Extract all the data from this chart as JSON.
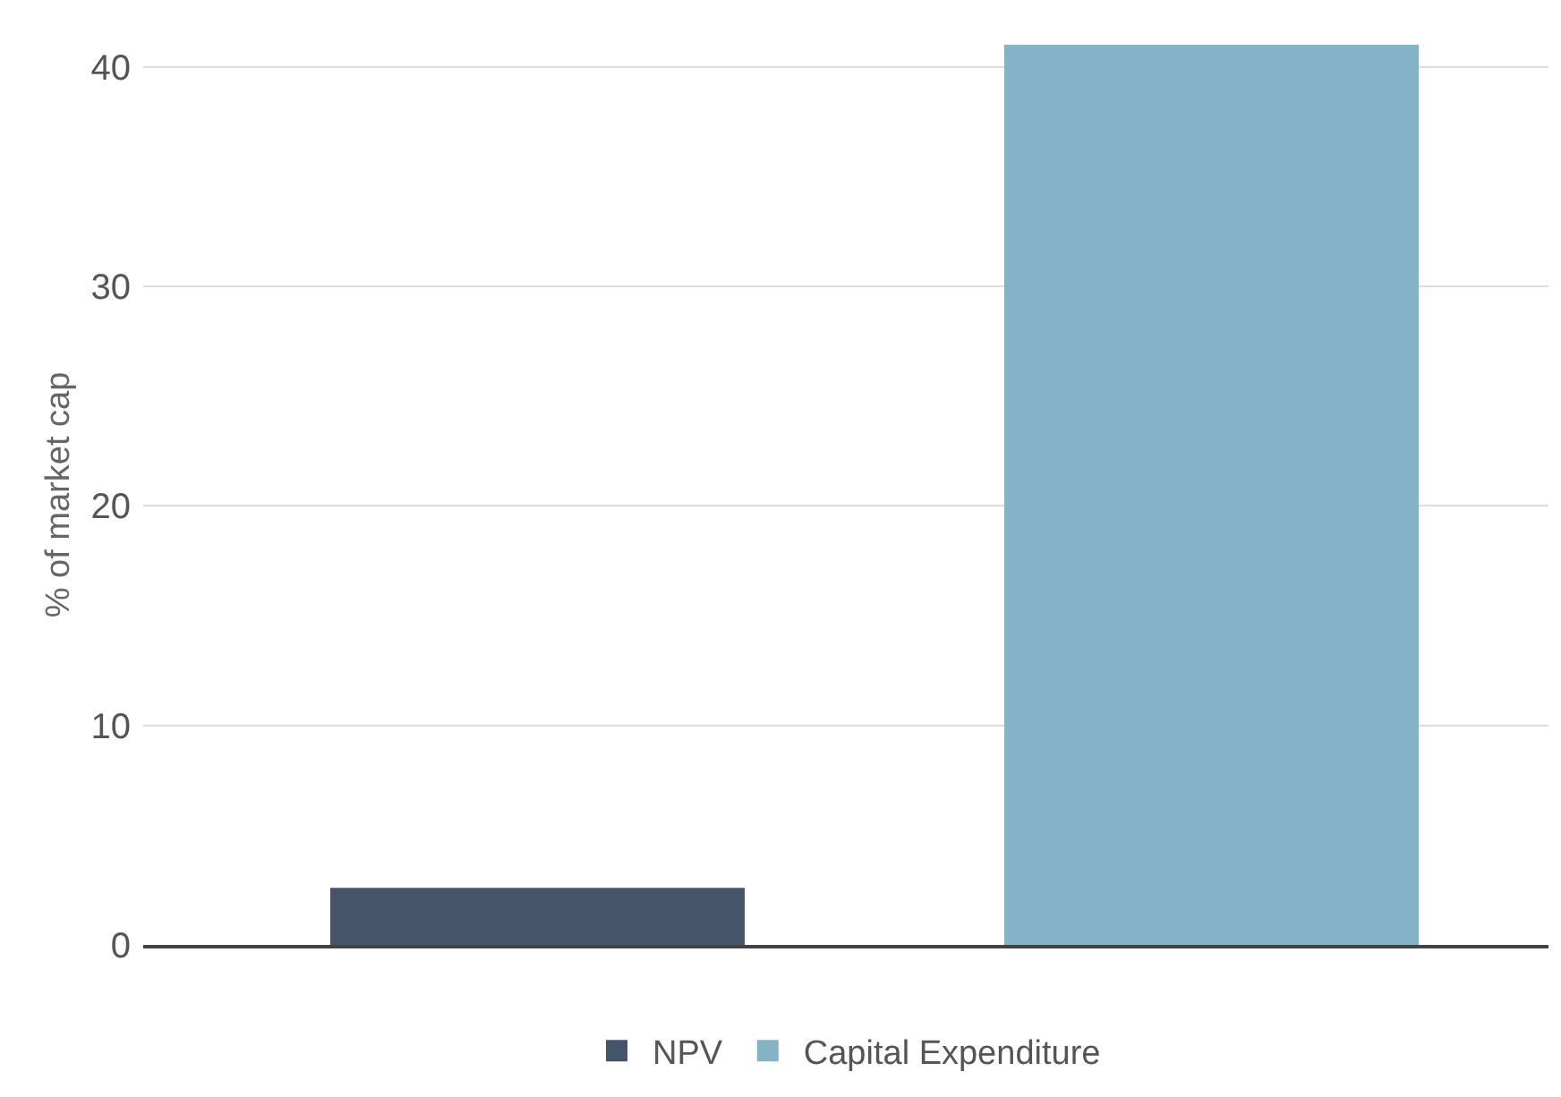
{
  "chart_data": {
    "type": "bar",
    "ylabel": "% of market cap",
    "categories": [
      null,
      null
    ],
    "series": [
      {
        "name": "NPV",
        "color": "#455469",
        "values": [
          2.6,
          null
        ]
      },
      {
        "name": "Capital Expenditure",
        "color": "#84b3c8",
        "values": [
          null,
          41
        ]
      }
    ],
    "ylim": [
      0,
      41
    ],
    "yticks": [
      0,
      10,
      20,
      30,
      40
    ],
    "grid": "y",
    "legend": "bottom",
    "tick_labels": "y"
  }
}
